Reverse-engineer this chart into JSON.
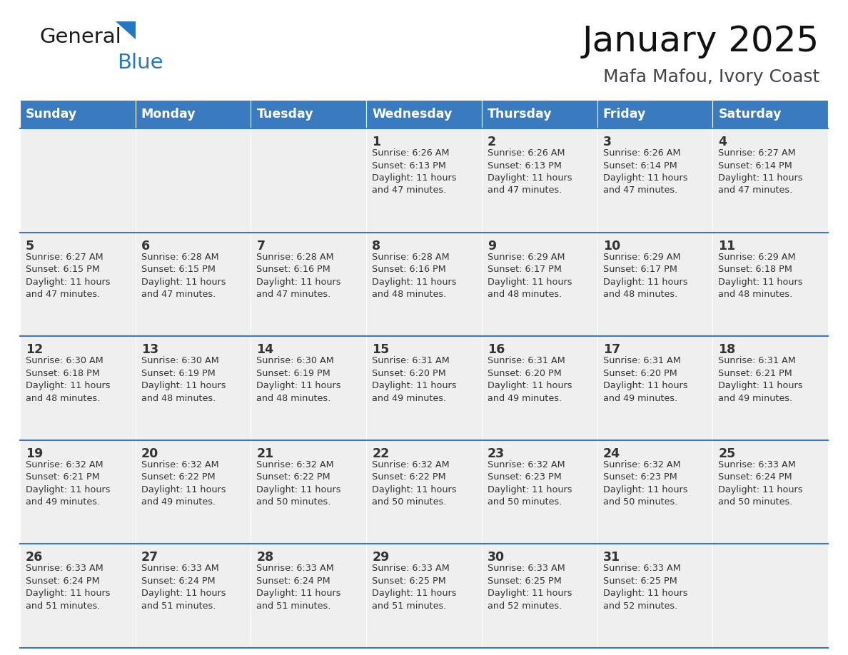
{
  "title": "January 2025",
  "subtitle": "Mafa Mafou, Ivory Coast",
  "header_color": "#3a7abf",
  "header_text_color": "#ffffff",
  "cell_bg": "#efefef",
  "text_color": "#333333",
  "line_color": "#3a7abf",
  "logo_text_color": "#1a1a1a",
  "logo_blue_color": "#2278c3",
  "subtitle_color": "#555555",
  "days_of_week": [
    "Sunday",
    "Monday",
    "Tuesday",
    "Wednesday",
    "Thursday",
    "Friday",
    "Saturday"
  ],
  "calendar": [
    [
      {
        "day": "",
        "info": ""
      },
      {
        "day": "",
        "info": ""
      },
      {
        "day": "",
        "info": ""
      },
      {
        "day": "1",
        "info": "Sunrise: 6:26 AM\nSunset: 6:13 PM\nDaylight: 11 hours\nand 47 minutes."
      },
      {
        "day": "2",
        "info": "Sunrise: 6:26 AM\nSunset: 6:13 PM\nDaylight: 11 hours\nand 47 minutes."
      },
      {
        "day": "3",
        "info": "Sunrise: 6:26 AM\nSunset: 6:14 PM\nDaylight: 11 hours\nand 47 minutes."
      },
      {
        "day": "4",
        "info": "Sunrise: 6:27 AM\nSunset: 6:14 PM\nDaylight: 11 hours\nand 47 minutes."
      }
    ],
    [
      {
        "day": "5",
        "info": "Sunrise: 6:27 AM\nSunset: 6:15 PM\nDaylight: 11 hours\nand 47 minutes."
      },
      {
        "day": "6",
        "info": "Sunrise: 6:28 AM\nSunset: 6:15 PM\nDaylight: 11 hours\nand 47 minutes."
      },
      {
        "day": "7",
        "info": "Sunrise: 6:28 AM\nSunset: 6:16 PM\nDaylight: 11 hours\nand 47 minutes."
      },
      {
        "day": "8",
        "info": "Sunrise: 6:28 AM\nSunset: 6:16 PM\nDaylight: 11 hours\nand 48 minutes."
      },
      {
        "day": "9",
        "info": "Sunrise: 6:29 AM\nSunset: 6:17 PM\nDaylight: 11 hours\nand 48 minutes."
      },
      {
        "day": "10",
        "info": "Sunrise: 6:29 AM\nSunset: 6:17 PM\nDaylight: 11 hours\nand 48 minutes."
      },
      {
        "day": "11",
        "info": "Sunrise: 6:29 AM\nSunset: 6:18 PM\nDaylight: 11 hours\nand 48 minutes."
      }
    ],
    [
      {
        "day": "12",
        "info": "Sunrise: 6:30 AM\nSunset: 6:18 PM\nDaylight: 11 hours\nand 48 minutes."
      },
      {
        "day": "13",
        "info": "Sunrise: 6:30 AM\nSunset: 6:19 PM\nDaylight: 11 hours\nand 48 minutes."
      },
      {
        "day": "14",
        "info": "Sunrise: 6:30 AM\nSunset: 6:19 PM\nDaylight: 11 hours\nand 48 minutes."
      },
      {
        "day": "15",
        "info": "Sunrise: 6:31 AM\nSunset: 6:20 PM\nDaylight: 11 hours\nand 49 minutes."
      },
      {
        "day": "16",
        "info": "Sunrise: 6:31 AM\nSunset: 6:20 PM\nDaylight: 11 hours\nand 49 minutes."
      },
      {
        "day": "17",
        "info": "Sunrise: 6:31 AM\nSunset: 6:20 PM\nDaylight: 11 hours\nand 49 minutes."
      },
      {
        "day": "18",
        "info": "Sunrise: 6:31 AM\nSunset: 6:21 PM\nDaylight: 11 hours\nand 49 minutes."
      }
    ],
    [
      {
        "day": "19",
        "info": "Sunrise: 6:32 AM\nSunset: 6:21 PM\nDaylight: 11 hours\nand 49 minutes."
      },
      {
        "day": "20",
        "info": "Sunrise: 6:32 AM\nSunset: 6:22 PM\nDaylight: 11 hours\nand 49 minutes."
      },
      {
        "day": "21",
        "info": "Sunrise: 6:32 AM\nSunset: 6:22 PM\nDaylight: 11 hours\nand 50 minutes."
      },
      {
        "day": "22",
        "info": "Sunrise: 6:32 AM\nSunset: 6:22 PM\nDaylight: 11 hours\nand 50 minutes."
      },
      {
        "day": "23",
        "info": "Sunrise: 6:32 AM\nSunset: 6:23 PM\nDaylight: 11 hours\nand 50 minutes."
      },
      {
        "day": "24",
        "info": "Sunrise: 6:32 AM\nSunset: 6:23 PM\nDaylight: 11 hours\nand 50 minutes."
      },
      {
        "day": "25",
        "info": "Sunrise: 6:33 AM\nSunset: 6:24 PM\nDaylight: 11 hours\nand 50 minutes."
      }
    ],
    [
      {
        "day": "26",
        "info": "Sunrise: 6:33 AM\nSunset: 6:24 PM\nDaylight: 11 hours\nand 51 minutes."
      },
      {
        "day": "27",
        "info": "Sunrise: 6:33 AM\nSunset: 6:24 PM\nDaylight: 11 hours\nand 51 minutes."
      },
      {
        "day": "28",
        "info": "Sunrise: 6:33 AM\nSunset: 6:24 PM\nDaylight: 11 hours\nand 51 minutes."
      },
      {
        "day": "29",
        "info": "Sunrise: 6:33 AM\nSunset: 6:25 PM\nDaylight: 11 hours\nand 51 minutes."
      },
      {
        "day": "30",
        "info": "Sunrise: 6:33 AM\nSunset: 6:25 PM\nDaylight: 11 hours\nand 52 minutes."
      },
      {
        "day": "31",
        "info": "Sunrise: 6:33 AM\nSunset: 6:25 PM\nDaylight: 11 hours\nand 52 minutes."
      },
      {
        "day": "",
        "info": ""
      }
    ]
  ]
}
